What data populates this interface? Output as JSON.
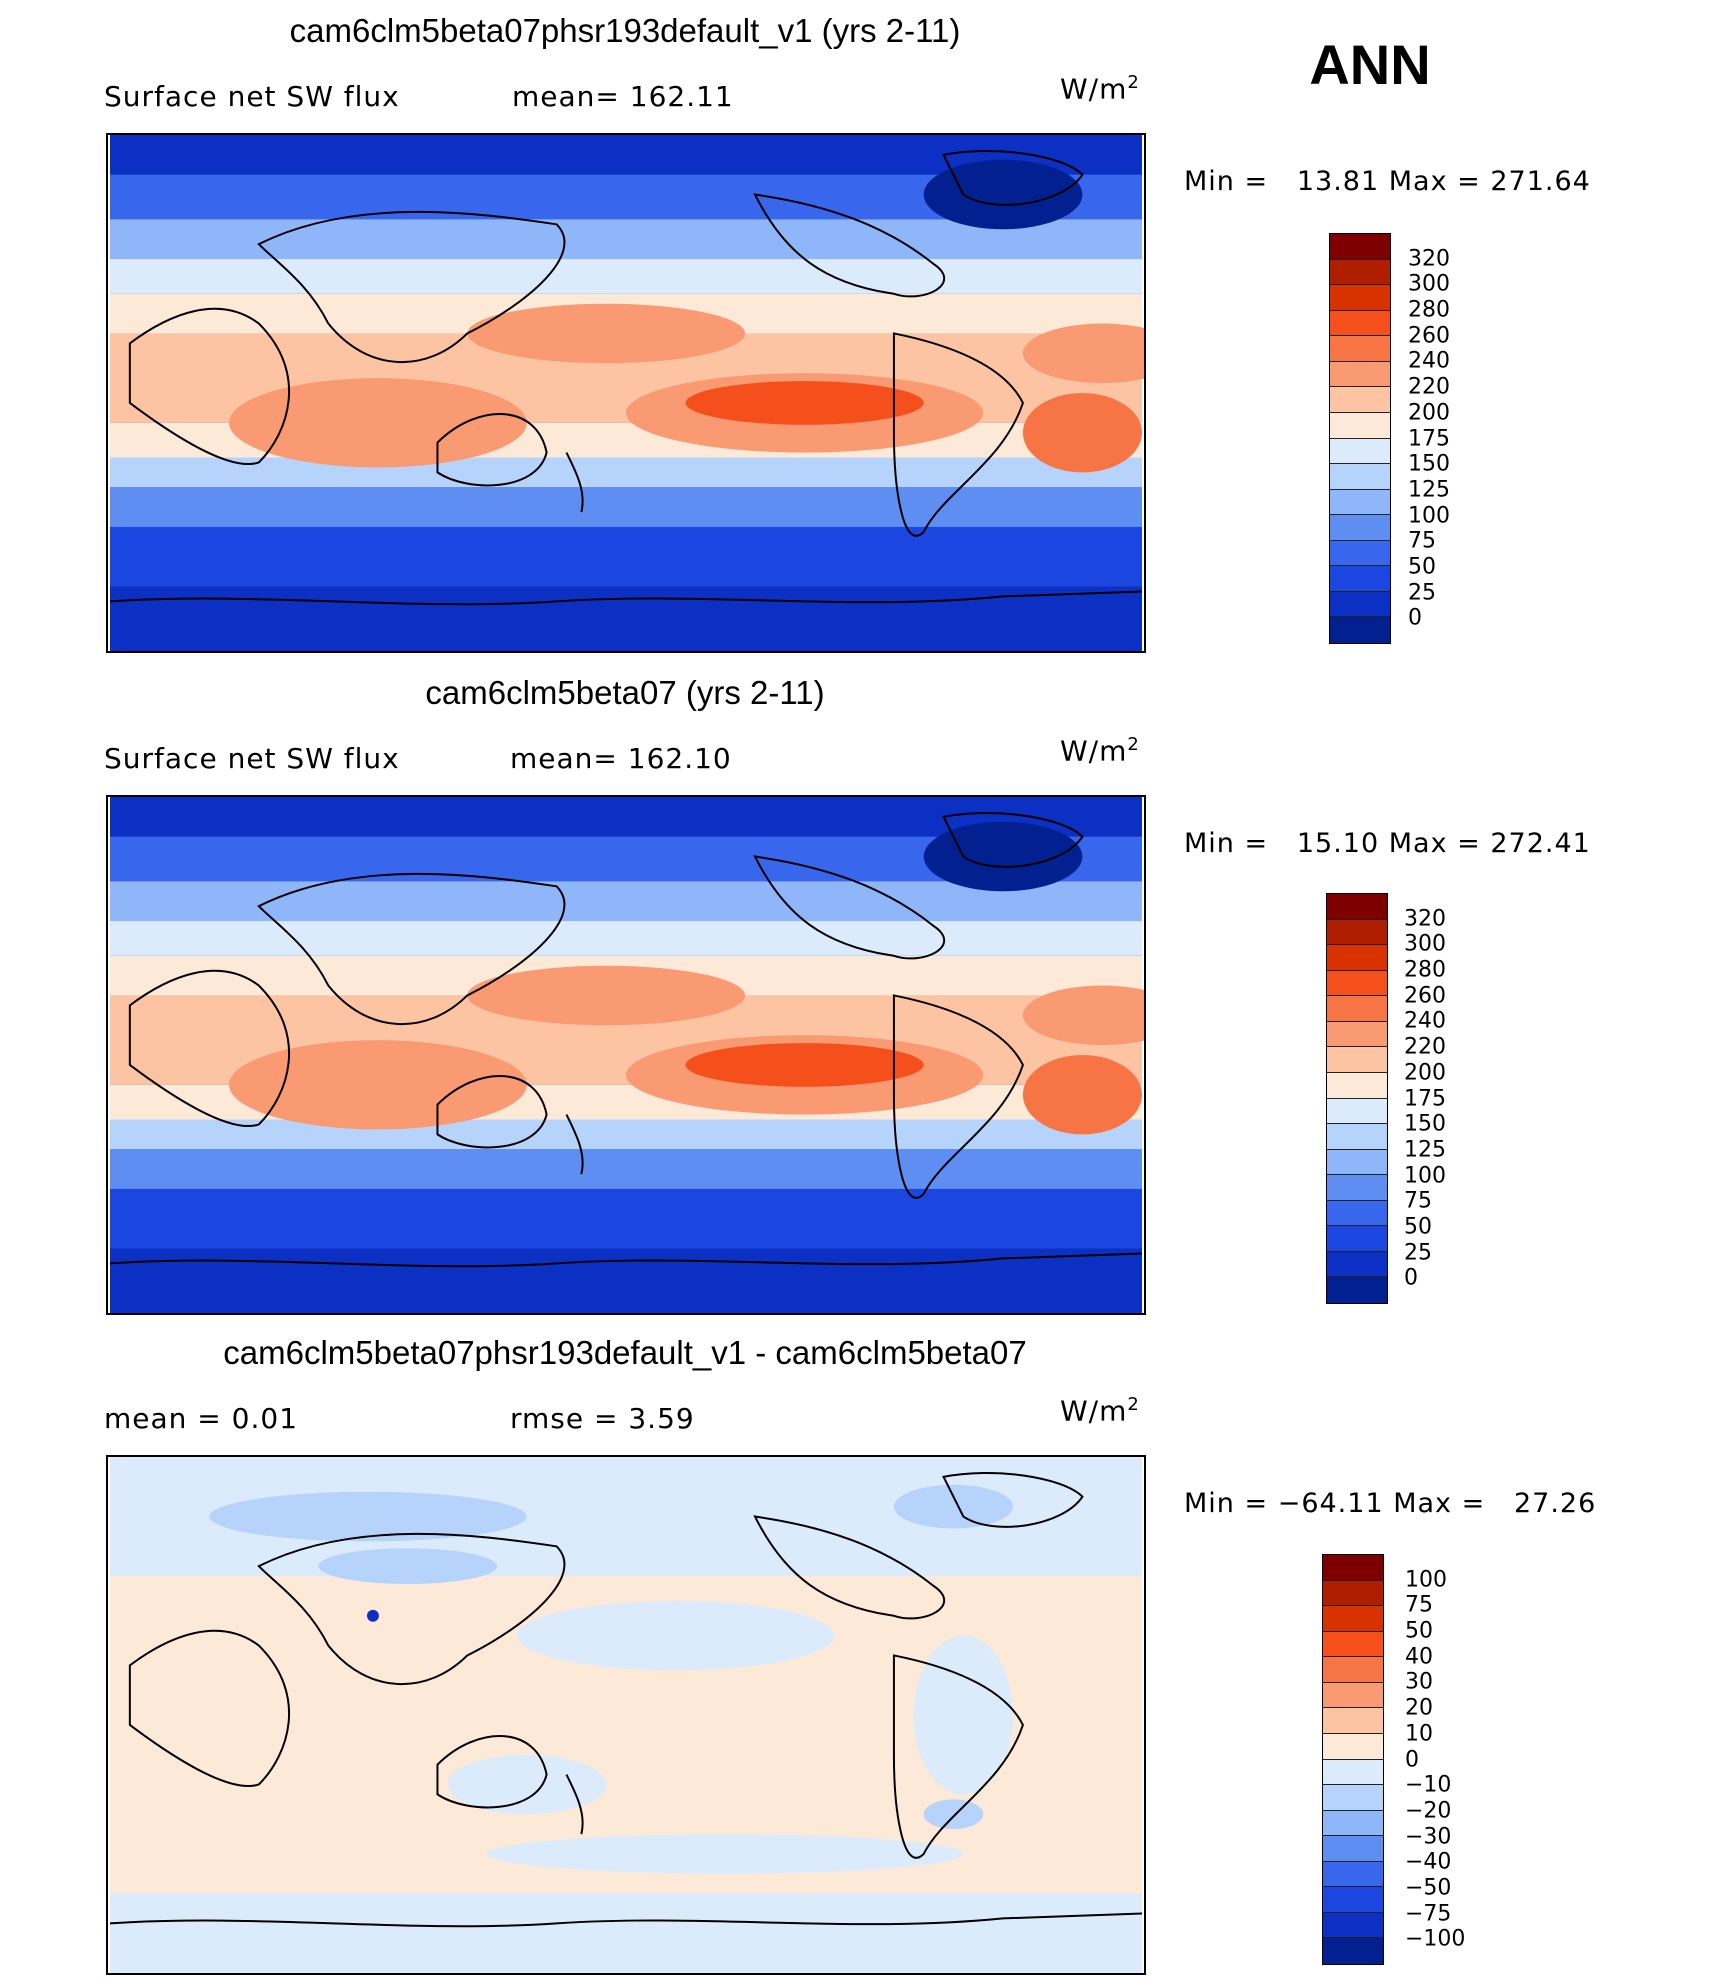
{
  "season": "ANN",
  "panels": [
    {
      "title": "cam6clm5beta07phsr193default_v1 (yrs 2-11)",
      "left_label": "Surface net SW flux",
      "mid_label": "mean= 162.11",
      "units": "W/m",
      "units_sup": "2",
      "minmax": "Min =   13.81 Max = 271.64",
      "levels": [
        "320",
        "300",
        "280",
        "260",
        "240",
        "220",
        "200",
        "175",
        "150",
        "125",
        "100",
        "75",
        "50",
        "25",
        "0"
      ],
      "colors": [
        "#7f0000",
        "#b01e00",
        "#d83200",
        "#f5501c",
        "#f77544",
        "#f99a72",
        "#fcc4a2",
        "#fde9d8",
        "#dcebfb",
        "#b6d3fb",
        "#8fb6f9",
        "#5f8ef3",
        "#3867ee",
        "#1c46e0",
        "#0c2fc4",
        "#02208f"
      ]
    },
    {
      "title": "cam6clm5beta07 (yrs 2-11)",
      "left_label": "Surface net SW flux",
      "mid_label": "mean= 162.10",
      "units": "W/m",
      "units_sup": "2",
      "minmax": "Min =   15.10 Max = 272.41",
      "levels": [
        "320",
        "300",
        "280",
        "260",
        "240",
        "220",
        "200",
        "175",
        "150",
        "125",
        "100",
        "75",
        "50",
        "25",
        "0"
      ],
      "colors": [
        "#7f0000",
        "#b01e00",
        "#d83200",
        "#f5501c",
        "#f77544",
        "#f99a72",
        "#fcc4a2",
        "#fde9d8",
        "#dcebfb",
        "#b6d3fb",
        "#8fb6f9",
        "#5f8ef3",
        "#3867ee",
        "#1c46e0",
        "#0c2fc4",
        "#02208f"
      ]
    },
    {
      "title": "cam6clm5beta07phsr193default_v1 - cam6clm5beta07",
      "left_label": "mean =    0.01",
      "mid_label": "rmse =    3.59",
      "units": "W/m",
      "units_sup": "2",
      "minmax": "Min = −64.11 Max =   27.26",
      "levels": [
        "100",
        "75",
        "50",
        "40",
        "30",
        "20",
        "10",
        "0",
        "−10",
        "−20",
        "−30",
        "−40",
        "−50",
        "−75",
        "−100"
      ],
      "colors": [
        "#7f0000",
        "#b01e00",
        "#d83200",
        "#f5501c",
        "#f77544",
        "#f99a72",
        "#fcc4a2",
        "#fde9d8",
        "#dcebfb",
        "#b6d3fb",
        "#8fb6f9",
        "#5f8ef3",
        "#3867ee",
        "#1c46e0",
        "#0c2fc4",
        "#02208f"
      ]
    }
  ]
}
